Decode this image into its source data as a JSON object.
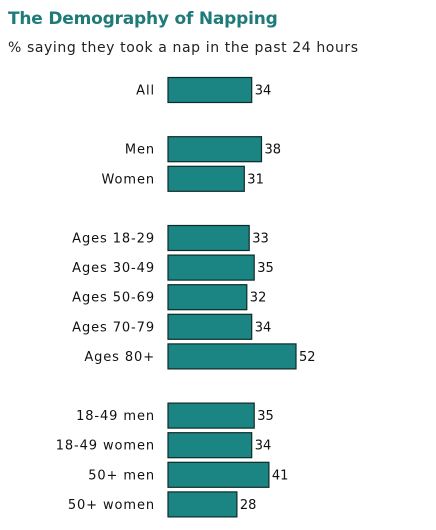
{
  "chart_data": {
    "type": "bar",
    "orientation": "horizontal",
    "title": "The Demography of Napping",
    "subtitle": "% saying they took a nap in the past 24 hours",
    "xlim": [
      0,
      52
    ],
    "grid": false,
    "groups": [
      {
        "categories": [
          "All"
        ],
        "values": [
          34
        ]
      },
      {
        "categories": [
          "Men",
          "Women"
        ],
        "values": [
          38,
          31
        ]
      },
      {
        "categories": [
          "Ages 18-29",
          "Ages 30-49",
          "Ages 50-69",
          "Ages 70-79",
          "Ages 80+"
        ],
        "values": [
          33,
          35,
          32,
          34,
          52
        ]
      },
      {
        "categories": [
          "18-49 men",
          "18-49 women",
          "50+ men",
          "50+ women"
        ],
        "values": [
          35,
          34,
          41,
          28
        ]
      }
    ],
    "colors": {
      "bar": "#1a8583",
      "title": "#1e7b7a"
    }
  }
}
